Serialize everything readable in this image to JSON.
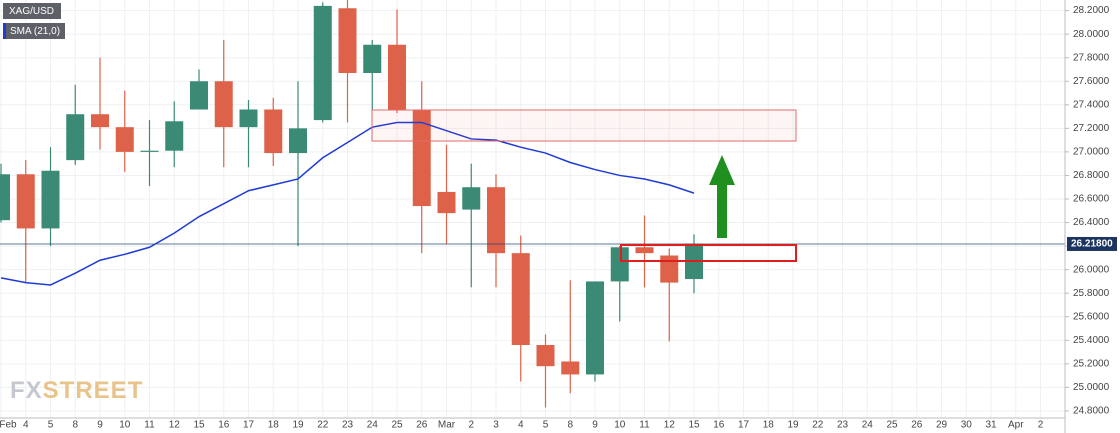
{
  "chart_data": {
    "type": "candlestick",
    "legend": [
      "XAG/USD",
      "SMA (21,0)"
    ],
    "watermark": [
      "FX",
      "STREET"
    ],
    "up_color": "#3a8a75",
    "down_color": "#de6249",
    "grid": true,
    "categories": [
      "Feb",
      "4",
      "5",
      "8",
      "9",
      "10",
      "11",
      "12",
      "15",
      "16",
      "17",
      "18",
      "19",
      "22",
      "23",
      "24",
      "25",
      "26",
      "Mar",
      "2",
      "3",
      "4",
      "5",
      "8",
      "9",
      "10",
      "11",
      "12",
      "15",
      "16",
      "17",
      "18",
      "19",
      "22",
      "23",
      "24",
      "25",
      "26",
      "29",
      "30",
      "31",
      "Apr",
      "2"
    ],
    "open": [
      26.42,
      26.81,
      26.35,
      26.93,
      27.32,
      27.21,
      27.0,
      27.01,
      27.36,
      27.6,
      27.21,
      27.36,
      26.99,
      27.27,
      28.22,
      27.67,
      27.91,
      27.36,
      26.66,
      26.51,
      26.7,
      26.14,
      25.36,
      25.22,
      25.11,
      25.9,
      26.19,
      26.12,
      25.92,
      null,
      null,
      null,
      null,
      null,
      null,
      null,
      null,
      null,
      null,
      null,
      null,
      null,
      null
    ],
    "high": [
      26.9,
      26.93,
      27.04,
      27.57,
      27.8,
      27.52,
      27.27,
      27.43,
      27.7,
      27.95,
      27.44,
      27.46,
      27.6,
      28.27,
      28.29,
      27.95,
      28.21,
      27.6,
      27.06,
      26.9,
      26.81,
      26.29,
      25.45,
      25.91,
      25.9,
      26.2,
      26.46,
      26.18,
      26.3,
      null,
      null,
      null,
      null,
      null,
      null,
      null,
      null,
      null,
      null,
      null,
      null,
      null,
      null
    ],
    "low": [
      26.4,
      25.89,
      26.2,
      26.89,
      27.02,
      26.83,
      26.71,
      26.87,
      27.36,
      26.87,
      26.87,
      26.88,
      26.2,
      27.25,
      27.25,
      27.36,
      27.33,
      26.14,
      26.22,
      25.85,
      25.85,
      25.05,
      24.83,
      24.95,
      25.05,
      25.56,
      25.85,
      25.39,
      25.8,
      null,
      null,
      null,
      null,
      null,
      null,
      null,
      null,
      null,
      null,
      null,
      null,
      null,
      null
    ],
    "close": [
      26.81,
      26.35,
      26.84,
      27.32,
      27.21,
      27.0,
      27.01,
      27.26,
      27.6,
      27.21,
      27.36,
      26.99,
      27.2,
      28.24,
      27.67,
      27.91,
      27.36,
      26.54,
      26.48,
      26.7,
      26.14,
      25.36,
      25.18,
      25.11,
      25.9,
      26.19,
      26.14,
      25.89,
      26.22,
      null,
      null,
      null,
      null,
      null,
      null,
      null,
      null,
      null,
      null,
      null,
      null,
      null,
      null
    ],
    "series": [
      {
        "name": "SMA (21,0)",
        "color": "#1f3bd6",
        "values": [
          25.93,
          25.89,
          25.87,
          25.97,
          26.08,
          26.13,
          26.19,
          26.31,
          26.45,
          26.56,
          26.67,
          26.72,
          26.77,
          26.95,
          27.08,
          27.21,
          27.25,
          27.25,
          27.18,
          27.11,
          27.1,
          27.04,
          26.99,
          26.91,
          26.85,
          26.8,
          26.77,
          26.72,
          26.65,
          null,
          null,
          null,
          null,
          null,
          null,
          null,
          null,
          null,
          null,
          null,
          null,
          null,
          null
        ]
      }
    ],
    "last_price": {
      "value": 26.218,
      "label": "26.21800"
    },
    "ylim": [
      24.74,
      28.29
    ],
    "yticks": [
      {
        "value": 24.8,
        "label": "24.8000"
      },
      {
        "value": 25.0,
        "label": "25.0000"
      },
      {
        "value": 25.2,
        "label": "25.2000"
      },
      {
        "value": 25.4,
        "label": "25.4000"
      },
      {
        "value": 25.6,
        "label": "25.6000"
      },
      {
        "value": 25.8,
        "label": "25.8000"
      },
      {
        "value": 26.0,
        "label": "26.0000"
      },
      {
        "value": 26.2,
        "label": "26.2000"
      },
      {
        "value": 26.4,
        "label": "26.4000"
      },
      {
        "value": 26.6,
        "label": "26.6000"
      },
      {
        "value": 26.8,
        "label": "26.8000"
      },
      {
        "value": 27.0,
        "label": "27.0000"
      },
      {
        "value": 27.2,
        "label": "27.2000"
      },
      {
        "value": 27.4,
        "label": "27.4000"
      },
      {
        "value": 27.6,
        "label": "27.6000"
      },
      {
        "value": 27.8,
        "label": "27.8000"
      },
      {
        "value": 28.0,
        "label": "28.0000"
      },
      {
        "value": 28.2,
        "label": "28.2000"
      }
    ]
  }
}
